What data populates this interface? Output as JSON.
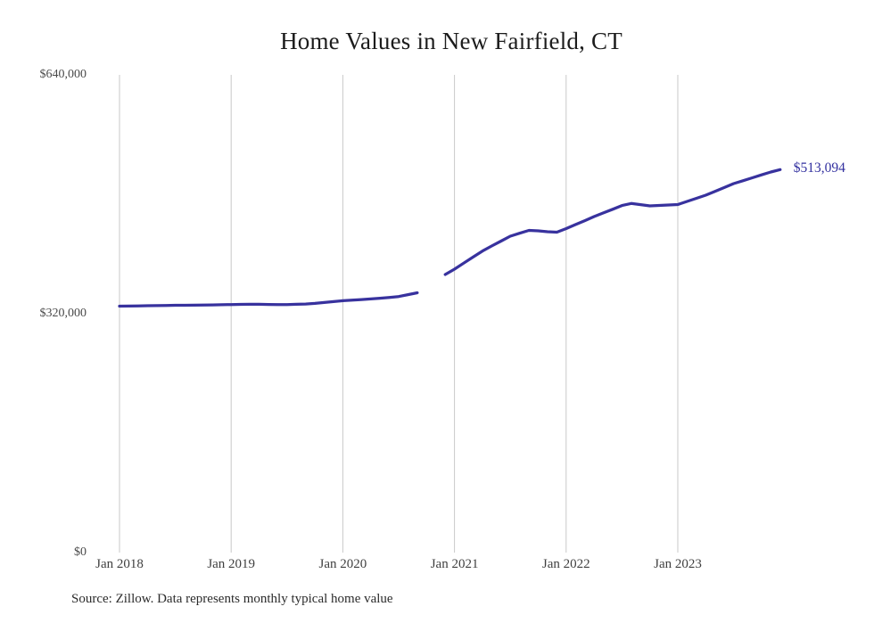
{
  "title": "Home Values in New Fairfield, CT",
  "source_note": "Source: Zillow. Data represents monthly typical home value",
  "end_label": "$513,094",
  "colors": {
    "line": "#38329e",
    "grid": "#c9c9c9",
    "title_text": "#1c1c1c",
    "axis_text": "#4a4a4a",
    "end_label_text": "#32309f",
    "background": "#ffffff"
  },
  "chart_data": {
    "type": "line",
    "title": "Home Values in New Fairfield, CT",
    "xlabel": "",
    "ylabel": "",
    "ylim": [
      0,
      640000
    ],
    "y_ticks": [
      640000,
      320000,
      0
    ],
    "y_tick_labels": [
      "$640,000",
      "$320,000",
      "$0"
    ],
    "x_tick_labels": [
      "Jan 2018",
      "Jan 2019",
      "Jan 2020",
      "Jan 2021",
      "Jan 2022",
      "Jan 2023"
    ],
    "grid": "vertical-only",
    "legend": "none",
    "data_gap_months": [
      "Oct 2020",
      "Nov 2020"
    ],
    "final_value": 513094,
    "final_value_label": "$513,094",
    "series": [
      {
        "name": "Monthly typical home value",
        "months": [
          "Jan 2018",
          "Feb 2018",
          "Mar 2018",
          "Apr 2018",
          "May 2018",
          "Jun 2018",
          "Jul 2018",
          "Aug 2018",
          "Sep 2018",
          "Oct 2018",
          "Nov 2018",
          "Dec 2018",
          "Jan 2019",
          "Feb 2019",
          "Mar 2019",
          "Apr 2019",
          "May 2019",
          "Jun 2019",
          "Jul 2019",
          "Aug 2019",
          "Sep 2019",
          "Oct 2019",
          "Nov 2019",
          "Dec 2019",
          "Jan 2020",
          "Feb 2020",
          "Mar 2020",
          "Apr 2020",
          "May 2020",
          "Jun 2020",
          "Jul 2020",
          "Aug 2020",
          "Sep 2020",
          "Oct 2020",
          "Nov 2020",
          "Dec 2020",
          "Jan 2021",
          "Feb 2021",
          "Mar 2021",
          "Apr 2021",
          "May 2021",
          "Jun 2021",
          "Jul 2021",
          "Aug 2021",
          "Sep 2021",
          "Oct 2021",
          "Nov 2021",
          "Dec 2021",
          "Jan 2022",
          "Feb 2022",
          "Mar 2022",
          "Apr 2022",
          "May 2022",
          "Jun 2022",
          "Jul 2022",
          "Aug 2022",
          "Sep 2022",
          "Oct 2022",
          "Nov 2022",
          "Dec 2022",
          "Jan 2023",
          "Feb 2023",
          "Mar 2023",
          "Apr 2023",
          "May 2023",
          "Jun 2023",
          "Jul 2023",
          "Aug 2023",
          "Sep 2023",
          "Oct 2023",
          "Nov 2023",
          "Dec 2023"
        ],
        "values": [
          330100,
          330300,
          330500,
          330700,
          330900,
          331100,
          331300,
          331400,
          331500,
          331600,
          331800,
          332000,
          332300,
          332500,
          332700,
          332600,
          332400,
          332200,
          332300,
          332600,
          333000,
          333800,
          335000,
          336200,
          337400,
          338200,
          339000,
          339800,
          340800,
          341800,
          343000,
          345500,
          348100,
          null,
          null,
          372500,
          379700,
          387800,
          395900,
          404000,
          410700,
          417300,
          423900,
          427800,
          431600,
          431100,
          429900,
          429300,
          434000,
          439400,
          444700,
          450100,
          455100,
          460000,
          465000,
          467700,
          466100,
          464500,
          465100,
          465700,
          466300,
          470500,
          474600,
          478800,
          484000,
          489100,
          494300,
          498200,
          502100,
          506000,
          509800,
          513094
        ]
      }
    ]
  }
}
